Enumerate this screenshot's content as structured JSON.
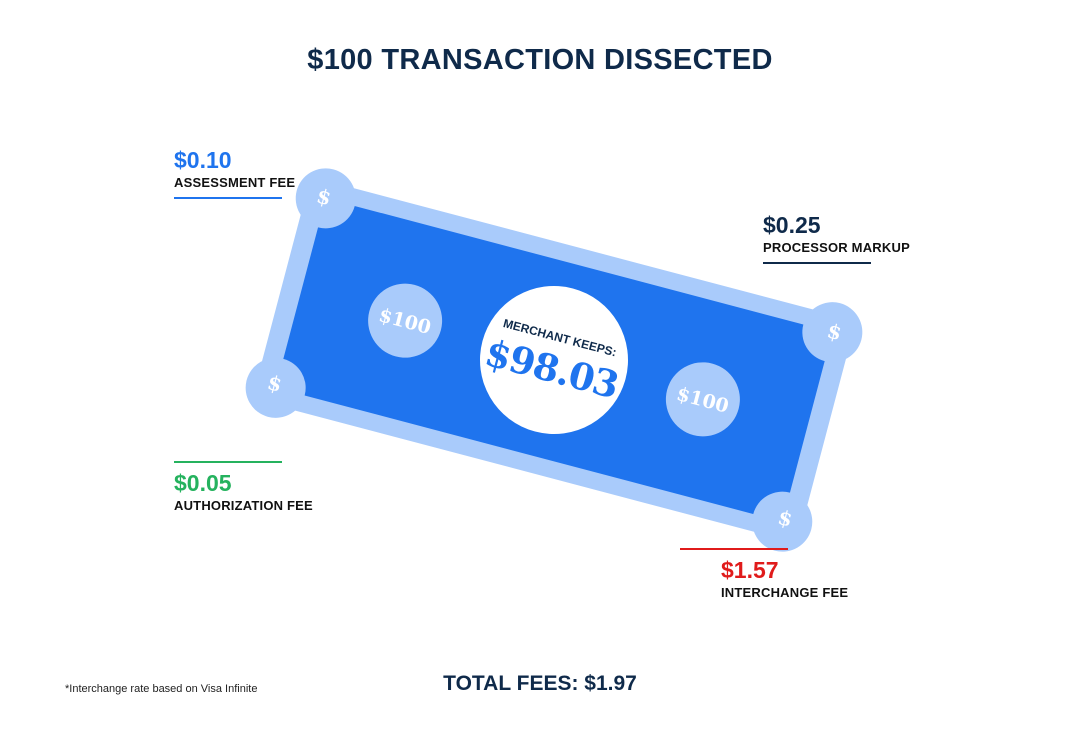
{
  "title": "$100 TRANSACTION DISSECTED",
  "bill": {
    "merchant_label": "MERCHANT KEEPS:",
    "merchant_amount": "$98.03",
    "denomination_left": "$100",
    "denomination_right": "$100",
    "corner_symbol": "$",
    "colors": {
      "outer": "#a9cbfb",
      "inner": "#1f74ee",
      "medallion": "#a9cbfb",
      "center": "#ffffff"
    }
  },
  "fees": {
    "assessment": {
      "amount": "$0.10",
      "label": "ASSESSMENT FEE",
      "color": "#1f74ee"
    },
    "processor": {
      "amount": "$0.25",
      "label": "PROCESSOR MARKUP",
      "color": "#0f2a4a"
    },
    "authorization": {
      "amount": "$0.05",
      "label": "AUTHORIZATION FEE",
      "color": "#25b25e"
    },
    "interchange": {
      "amount": "$1.57",
      "label": "INTERCHANGE FEE",
      "color": "#e01b1b"
    }
  },
  "footnote": "*Interchange rate based on Visa Infinite",
  "total": "TOTAL FEES: $1.97"
}
